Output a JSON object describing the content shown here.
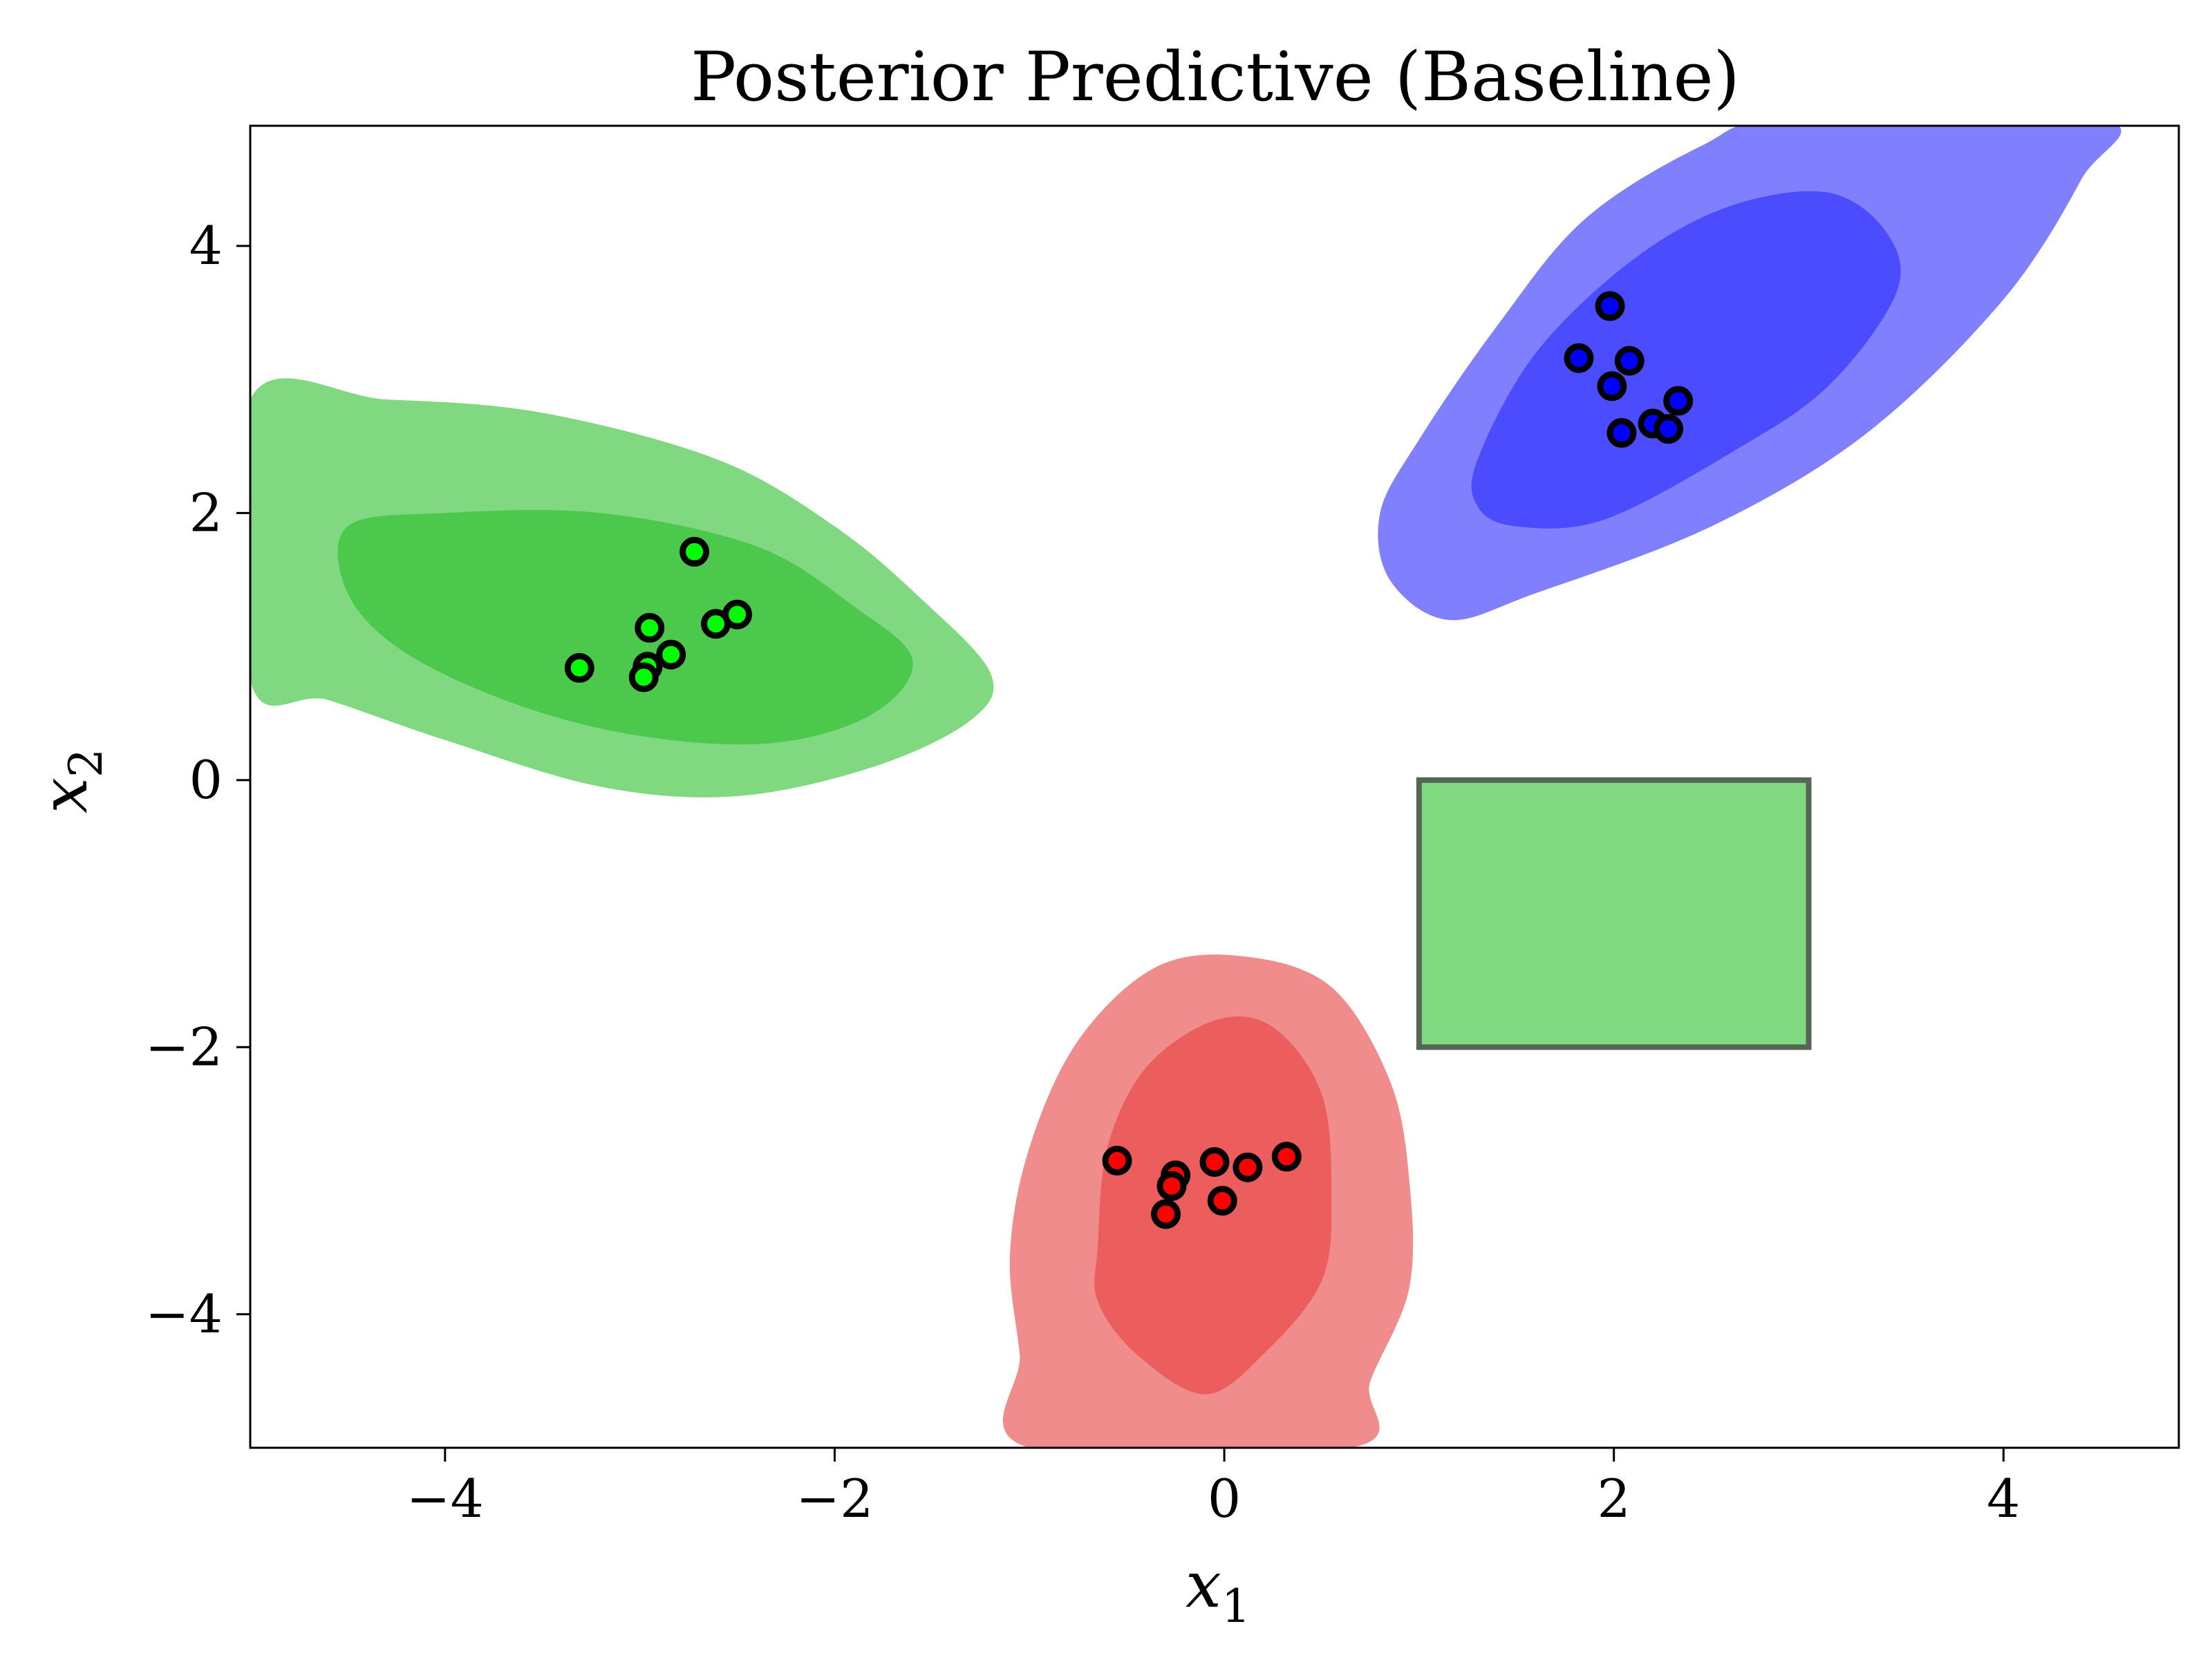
{
  "chart_data": {
    "type": "scatter",
    "title": "Posterior Predictive (Baseline)",
    "xlabel": {
      "symbol": "x",
      "subscript": "1"
    },
    "ylabel": {
      "symbol": "x",
      "subscript": "2"
    },
    "xlim": [
      -5.0,
      4.9
    ],
    "ylim": [
      -5.0,
      4.9
    ],
    "xticks": [
      -4,
      -2,
      0,
      2,
      4
    ],
    "yticks": [
      -4,
      -2,
      0,
      2,
      4
    ],
    "xtick_labels": [
      "−4",
      "−2",
      "0",
      "2",
      "4"
    ],
    "ytick_labels": [
      "−4",
      "−2",
      "0",
      "2",
      "4"
    ],
    "grid": false,
    "legend": "none",
    "regions": [
      {
        "cluster": "green",
        "outer_color": "#80d880",
        "inner_color": "#4cc84c",
        "outer": [
          [
            -5.0,
            2.85
          ],
          [
            -4.3,
            2.85
          ],
          [
            -3.5,
            2.75
          ],
          [
            -2.6,
            2.4
          ],
          [
            -2.0,
            1.9
          ],
          [
            -1.55,
            1.35
          ],
          [
            -1.2,
            0.8
          ],
          [
            -1.3,
            0.45
          ],
          [
            -1.8,
            0.1
          ],
          [
            -2.5,
            -0.12
          ],
          [
            -3.2,
            -0.05
          ],
          [
            -4.0,
            0.3
          ],
          [
            -4.6,
            0.6
          ],
          [
            -5.0,
            0.75
          ]
        ],
        "inner": [
          [
            -4.5,
            1.9
          ],
          [
            -4.0,
            2.0
          ],
          [
            -3.2,
            2.0
          ],
          [
            -2.4,
            1.75
          ],
          [
            -1.9,
            1.3
          ],
          [
            -1.6,
            0.9
          ],
          [
            -1.8,
            0.5
          ],
          [
            -2.3,
            0.28
          ],
          [
            -2.95,
            0.32
          ],
          [
            -3.6,
            0.55
          ],
          [
            -4.2,
            0.95
          ],
          [
            -4.5,
            1.4
          ]
        ]
      },
      {
        "cluster": "blue",
        "outer_color": "#8080ff",
        "inner_color": "#4c4cff",
        "outer": [
          [
            0.8,
            2.0
          ],
          [
            1.0,
            2.55
          ],
          [
            1.4,
            3.4
          ],
          [
            1.85,
            4.2
          ],
          [
            2.45,
            4.75
          ],
          [
            2.9,
            4.95
          ],
          [
            4.5,
            4.95
          ],
          [
            4.4,
            4.5
          ],
          [
            4.0,
            3.6
          ],
          [
            3.3,
            2.6
          ],
          [
            2.5,
            1.9
          ],
          [
            1.6,
            1.4
          ],
          [
            1.15,
            1.2
          ],
          [
            0.85,
            1.5
          ]
        ],
        "inner": [
          [
            1.3,
            2.4
          ],
          [
            1.6,
            3.2
          ],
          [
            2.1,
            3.9
          ],
          [
            2.6,
            4.3
          ],
          [
            3.1,
            4.4
          ],
          [
            3.4,
            4.1
          ],
          [
            3.45,
            3.65
          ],
          [
            3.1,
            2.95
          ],
          [
            2.6,
            2.45
          ],
          [
            1.95,
            1.95
          ],
          [
            1.5,
            1.9
          ],
          [
            1.3,
            2.05
          ]
        ]
      },
      {
        "cluster": "red",
        "outer_color": "#f08c8c",
        "inner_color": "#ec5e5e",
        "outer": [
          [
            -1.0,
            -5.0
          ],
          [
            -1.05,
            -4.3
          ],
          [
            -1.1,
            -3.55
          ],
          [
            -1.0,
            -2.75
          ],
          [
            -0.75,
            -1.95
          ],
          [
            -0.35,
            -1.4
          ],
          [
            0.1,
            -1.32
          ],
          [
            0.55,
            -1.55
          ],
          [
            0.85,
            -2.25
          ],
          [
            0.95,
            -3.0
          ],
          [
            0.95,
            -3.8
          ],
          [
            0.75,
            -4.5
          ],
          [
            0.65,
            -5.0
          ]
        ],
        "inner": [
          [
            -0.65,
            -3.5
          ],
          [
            -0.6,
            -2.75
          ],
          [
            -0.4,
            -2.15
          ],
          [
            -0.05,
            -1.8
          ],
          [
            0.25,
            -1.85
          ],
          [
            0.5,
            -2.35
          ],
          [
            0.55,
            -3.1
          ],
          [
            0.5,
            -3.75
          ],
          [
            0.2,
            -4.3
          ],
          [
            -0.1,
            -4.6
          ],
          [
            -0.45,
            -4.3
          ],
          [
            -0.65,
            -3.9
          ]
        ]
      }
    ],
    "points": [
      {
        "cluster": "green",
        "color": "#00ff00",
        "x": [
          -2.72,
          -2.95,
          -3.31,
          -2.96,
          -2.84,
          -2.61,
          -2.5,
          -2.98
        ],
        "y": [
          1.71,
          1.14,
          0.84,
          0.85,
          0.94,
          1.17,
          1.24,
          0.77
        ]
      },
      {
        "cluster": "blue",
        "color": "#0000ff",
        "x": [
          1.98,
          1.82,
          2.08,
          1.99,
          2.33,
          2.2,
          2.28,
          2.04
        ],
        "y": [
          3.55,
          3.16,
          3.14,
          2.95,
          2.84,
          2.67,
          2.63,
          2.6
        ]
      },
      {
        "cluster": "red",
        "color": "#ff0000",
        "x": [
          -0.55,
          -0.25,
          -0.27,
          -0.05,
          0.12,
          0.32,
          -0.01,
          -0.3
        ],
        "y": [
          -2.85,
          -2.96,
          -3.04,
          -2.86,
          -2.9,
          -2.82,
          -3.15,
          -3.25
        ]
      }
    ],
    "rectangle": {
      "x0": 1.0,
      "x1": 3.0,
      "y0": -2.0,
      "y1": 0.0,
      "fill": "#80d880",
      "stroke": "#556655"
    }
  }
}
